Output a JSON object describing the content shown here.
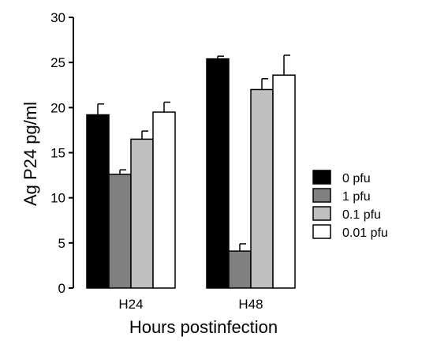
{
  "chart_data": {
    "type": "bar",
    "title": "",
    "xlabel": "Hours postinfection",
    "ylabel": "Ag P24 pg/ml",
    "ylim": [
      0,
      30
    ],
    "yticks": [
      "0",
      "5",
      "10",
      "15",
      "20",
      "25",
      "30"
    ],
    "categories": [
      "H24",
      "H48"
    ],
    "series": [
      {
        "name": "0 pfu",
        "color": "#000000",
        "values": [
          19.2,
          25.4
        ],
        "errors": [
          1.2,
          0.3
        ]
      },
      {
        "name": "1 pfu",
        "color": "#808080",
        "values": [
          12.6,
          4.1
        ],
        "errors": [
          0.5,
          0.8
        ]
      },
      {
        "name": "0.1 pfu",
        "color": "#c0c0c0",
        "values": [
          16.5,
          22.0
        ],
        "errors": [
          0.9,
          1.2
        ]
      },
      {
        "name": "0.01 pfu",
        "color": "#ffffff",
        "values": [
          19.5,
          23.6
        ],
        "errors": [
          1.1,
          2.2
        ]
      }
    ],
    "legend_position": "right",
    "grid": false
  }
}
